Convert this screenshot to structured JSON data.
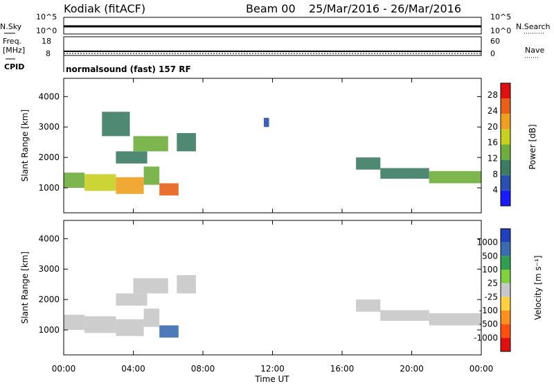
{
  "header": {
    "station": "Kodiak (fitACF)",
    "beam": "Beam 00",
    "date_range": "25/Mar/2016 - 26/Mar/2016"
  },
  "summary_panels": {
    "nsky_label": "N.Sky",
    "nsearch_label": "N.Search",
    "nsky_ticks": [
      "10^5",
      "10^0"
    ],
    "nsearch_ticks": [
      "10^5",
      "10^0"
    ],
    "freq_label_1": "Freq.",
    "freq_label_2": "[MHz]",
    "freq_ticks": [
      "18",
      "8"
    ],
    "nave_label": "Nave",
    "nave_ticks": [
      "60",
      "0"
    ],
    "cpid_label": "CPID",
    "cpid_text": "normalsound (fast) 157 RF"
  },
  "chart_data": [
    {
      "type": "heatmap",
      "name": "power",
      "ylabel": "Slant Range [km]",
      "yticks": [
        "1000",
        "2000",
        "3000",
        "4000"
      ],
      "ylim": [
        180,
        4600
      ],
      "xlim": [
        0,
        24
      ],
      "colorbar": {
        "label": "Power [dB]",
        "ticks": [
          "4",
          "8",
          "12",
          "16",
          "20",
          "24",
          "28"
        ],
        "range": [
          0,
          31
        ],
        "colors": [
          "#1a1aff",
          "#2850b0",
          "#3c7c64",
          "#6fae3c",
          "#c8d020",
          "#f0a020",
          "#e86018",
          "#e01010"
        ]
      },
      "regions": [
        {
          "t": [
            0,
            1.2
          ],
          "r": [
            1000,
            1500
          ],
          "level": 12
        },
        {
          "t": [
            1.2,
            3.0
          ],
          "r": [
            900,
            1450
          ],
          "level": 16
        },
        {
          "t": [
            3.0,
            4.6
          ],
          "r": [
            800,
            1350
          ],
          "level": 20
        },
        {
          "t": [
            4.6,
            5.5
          ],
          "r": [
            1100,
            1700
          ],
          "level": 14
        },
        {
          "t": [
            5.5,
            6.6
          ],
          "r": [
            750,
            1150
          ],
          "level": 26
        },
        {
          "t": [
            3.0,
            4.8
          ],
          "r": [
            1800,
            2200
          ],
          "level": 10
        },
        {
          "t": [
            4.0,
            6.0
          ],
          "r": [
            2200,
            2700
          ],
          "level": 12
        },
        {
          "t": [
            6.5,
            7.6
          ],
          "r": [
            2200,
            2800
          ],
          "level": 10
        },
        {
          "t": [
            16.8,
            18.2
          ],
          "r": [
            1600,
            2000
          ],
          "level": 8
        },
        {
          "t": [
            18.2,
            21.0
          ],
          "r": [
            1300,
            1650
          ],
          "level": 10
        },
        {
          "t": [
            21.0,
            24.0
          ],
          "r": [
            1150,
            1550
          ],
          "level": 14
        },
        {
          "t": [
            2.2,
            3.8
          ],
          "r": [
            2700,
            3500
          ],
          "level": 8
        },
        {
          "t": [
            11.5,
            11.8
          ],
          "r": [
            3000,
            3300
          ],
          "level": 6
        }
      ]
    },
    {
      "type": "heatmap",
      "name": "velocity",
      "ylabel": "Slant Range [km]",
      "yticks": [
        "1000",
        "2000",
        "3000",
        "4000"
      ],
      "ylim": [
        180,
        4600
      ],
      "xlim": [
        0,
        24
      ],
      "xticks": [
        "00:00",
        "04:00",
        "08:00",
        "12:00",
        "16:00",
        "20:00",
        "00:00"
      ],
      "xlabel": "Time UT",
      "colorbar": {
        "label": "Velocity [m s⁻¹]",
        "ticks": [
          "1000",
          "500",
          "100",
          "25",
          "-25",
          "-100",
          "-500",
          "-1000"
        ],
        "colors": [
          "#2040c0",
          "#3a6cb0",
          "#30a050",
          "#80d040",
          "#c8c8c8",
          "#ffd040",
          "#ff9020",
          "#ff5010",
          "#e01010"
        ]
      },
      "regions": [
        {
          "t": [
            0,
            1.2
          ],
          "r": [
            1000,
            1500
          ],
          "v": 0
        },
        {
          "t": [
            1.2,
            3.0
          ],
          "r": [
            900,
            1450
          ],
          "v": 0
        },
        {
          "t": [
            3.0,
            4.6
          ],
          "r": [
            800,
            1350
          ],
          "v": 0
        },
        {
          "t": [
            4.6,
            5.5
          ],
          "r": [
            1100,
            1700
          ],
          "v": 0
        },
        {
          "t": [
            5.5,
            6.6
          ],
          "r": [
            750,
            1150
          ],
          "v": 120
        },
        {
          "t": [
            3.0,
            4.8
          ],
          "r": [
            1800,
            2200
          ],
          "v": 0
        },
        {
          "t": [
            4.0,
            6.0
          ],
          "r": [
            2200,
            2700
          ],
          "v": 0
        },
        {
          "t": [
            6.5,
            7.6
          ],
          "r": [
            2200,
            2800
          ],
          "v": 0
        },
        {
          "t": [
            16.8,
            18.2
          ],
          "r": [
            1600,
            2000
          ],
          "v": 0
        },
        {
          "t": [
            18.2,
            21.0
          ],
          "r": [
            1300,
            1650
          ],
          "v": 0
        },
        {
          "t": [
            21.0,
            24.0
          ],
          "r": [
            1150,
            1550
          ],
          "v": 0
        }
      ]
    }
  ]
}
